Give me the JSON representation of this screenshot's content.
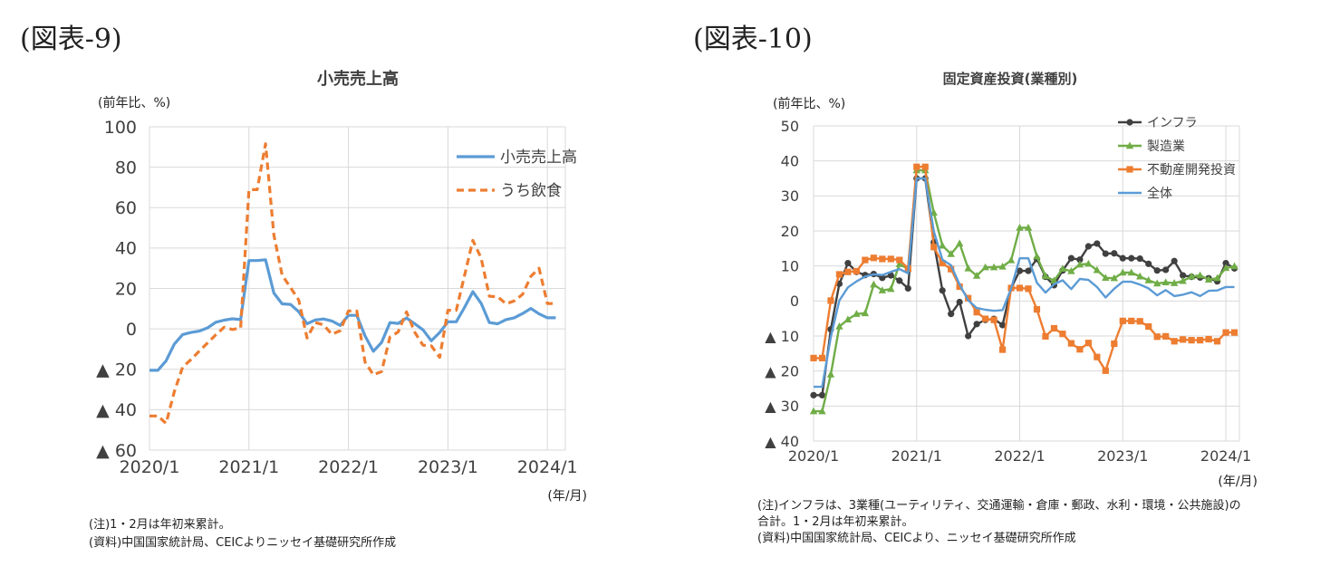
{
  "figures": [
    {
      "label": "(図表-9)",
      "chart_data": {
        "type": "line",
        "title": "小売売上高",
        "ylabel": "(前年比、%)",
        "xunit": "(年/月)",
        "ylim": [
          -60,
          100
        ],
        "yticks": [
          100,
          80,
          60,
          40,
          20,
          0,
          -20,
          -40,
          -60
        ],
        "ytick_labels": [
          "100",
          "80",
          "60",
          "40",
          "20",
          "0",
          "▲ 20",
          "▲ 40",
          "▲ 60"
        ],
        "xtick_labels": [
          "2020/1",
          "2021/1",
          "2022/1",
          "2023/1",
          "2024/1"
        ],
        "xtick_index": [
          0,
          12,
          24,
          36,
          48
        ],
        "grid": true,
        "legend_position": "top-right",
        "series": [
          {
            "name": "小売売上高",
            "color": "#5b9bd5",
            "style": "solid",
            "marker": "none",
            "values": [
              -20.5,
              -20.5,
              -15.8,
              -7.5,
              -2.8,
              -1.8,
              -1.1,
              0.5,
              3.3,
              4.3,
              5.0,
              4.6,
              33.8,
              33.8,
              34.2,
              17.7,
              12.4,
              12.1,
              8.5,
              2.5,
              4.4,
              4.9,
              3.9,
              1.7,
              6.7,
              6.7,
              -3.5,
              -11.1,
              -6.7,
              3.1,
              2.7,
              5.4,
              2.5,
              -0.5,
              -5.9,
              -1.8,
              3.5,
              3.5,
              10.6,
              18.4,
              12.7,
              3.1,
              2.5,
              4.6,
              5.5,
              7.6,
              10.1,
              7.4,
              5.5,
              5.5
            ]
          },
          {
            "name": "うち飲食",
            "color": "#ed7d31",
            "style": "dashed",
            "marker": "none",
            "values": [
              -43.1,
              -43.1,
              -46.8,
              -31.1,
              -18.9,
              -15.2,
              -11.0,
              -7.0,
              -2.9,
              0.8,
              -0.3,
              0.4,
              68.9,
              68.9,
              91.6,
              46.4,
              26.6,
              20.5,
              14.3,
              -4.5,
              3.1,
              2.0,
              -2.7,
              -0.9,
              8.9,
              8.9,
              -16.4,
              -22.7,
              -21.1,
              -4.0,
              -1.5,
              8.4,
              -1.7,
              -8.1,
              -8.4,
              -14.1,
              9.2,
              9.2,
              26.3,
              43.8,
              35.1,
              16.1,
              15.9,
              12.4,
              13.8,
              17.1,
              25.9,
              30.0,
              12.5,
              12.5
            ]
          }
        ]
      },
      "notes": [
        "(注)1・2月は年初来累計。",
        "(資料)中国国家統計局、CEICよりニッセイ基礎研究所作成"
      ]
    },
    {
      "label": "(図表-10)",
      "chart_data": {
        "type": "line",
        "title": "固定資産投資(業種別)",
        "ylabel": "(前年比、%)",
        "xunit": "(年/月)",
        "ylim": [
          -40,
          50
        ],
        "yticks": [
          50,
          40,
          30,
          20,
          10,
          0,
          -10,
          -20,
          -30,
          -40
        ],
        "ytick_labels": [
          "50",
          "40",
          "30",
          "20",
          "10",
          "0",
          "▲ 10",
          "▲ 20",
          "▲ 30",
          "▲ 40"
        ],
        "xtick_labels": [
          "2020/1",
          "2021/1",
          "2022/1",
          "2023/1",
          "2024/1"
        ],
        "xtick_index": [
          0,
          12,
          24,
          36,
          48
        ],
        "grid": true,
        "legend_position": "top-right",
        "series": [
          {
            "name": "インフラ",
            "color": "#404040",
            "style": "solid",
            "marker": "circle",
            "values": [
              -26.9,
              -26.9,
              -8.1,
              4.9,
              10.8,
              8.3,
              7.4,
              7.7,
              6.6,
              7.3,
              5.8,
              3.6,
              35.0,
              35.0,
              16.8,
              3.0,
              -3.7,
              -0.3,
              -10.0,
              -6.6,
              -5.4,
              -5.1,
              -6.9,
              3.7,
              8.6,
              8.6,
              12.0,
              6.9,
              4.5,
              8.7,
              12.2,
              11.8,
              15.6,
              16.4,
              13.5,
              13.6,
              12.2,
              12.2,
              12.1,
              10.6,
              8.7,
              8.9,
              11.4,
              7.3,
              6.9,
              6.7,
              6.5,
              5.6,
              10.8,
              9.3
            ]
          },
          {
            "name": "製造業",
            "color": "#70ad47",
            "style": "solid",
            "marker": "triangle",
            "values": [
              -31.5,
              -31.5,
              -21.0,
              -7.3,
              -5.3,
              -3.7,
              -3.5,
              4.7,
              3.0,
              3.4,
              10.5,
              9.2,
              37.3,
              37.3,
              25.2,
              15.8,
              13.4,
              16.4,
              9.3,
              7.2,
              9.6,
              9.6,
              9.8,
              11.6,
              20.9,
              20.9,
              12.7,
              7.1,
              5.8,
              9.2,
              8.5,
              10.4,
              10.6,
              8.8,
              6.6,
              6.5,
              8.1,
              8.1,
              7.0,
              5.9,
              5.0,
              5.3,
              5.1,
              5.7,
              7.0,
              7.3,
              6.1,
              6.5,
              9.4,
              9.9
            ]
          },
          {
            "name": "不動産開発投資",
            "color": "#ed7d31",
            "style": "solid",
            "marker": "square",
            "values": [
              -16.3,
              -16.3,
              0.1,
              7.6,
              8.3,
              8.5,
              11.7,
              12.3,
              12.0,
              12.0,
              11.7,
              9.3,
              38.3,
              38.3,
              15.4,
              10.8,
              9.1,
              4.1,
              0.8,
              -3.2,
              -5.1,
              -5.4,
              -13.9,
              3.7,
              3.7,
              3.5,
              -2.4,
              -10.1,
              -7.8,
              -9.4,
              -12.1,
              -13.8,
              -12.0,
              -16.0,
              -19.9,
              -12.2,
              -5.7,
              -5.7,
              -5.8,
              -7.3,
              -10.2,
              -10.1,
              -11.5,
              -11.0,
              -11.2,
              -11.2,
              -10.9,
              -11.5,
              -9.0,
              -9.0
            ]
          },
          {
            "name": "全体",
            "color": "#5b9bd5",
            "style": "solid",
            "marker": "none",
            "values": [
              -24.5,
              -24.5,
              -10.3,
              0.1,
              3.9,
              5.6,
              7.0,
              7.6,
              7.4,
              8.3,
              9.1,
              7.9,
              35.0,
              35.0,
              19.9,
              11.8,
              10.2,
              4.7,
              0.2,
              -2.0,
              -2.5,
              -2.8,
              -2.6,
              3.5,
              12.2,
              12.2,
              5.2,
              2.4,
              4.8,
              5.9,
              3.4,
              6.3,
              6.0,
              4.0,
              1.0,
              3.5,
              5.5,
              5.5,
              4.7,
              3.6,
              1.6,
              3.1,
              1.4,
              1.8,
              2.5,
              1.4,
              2.9,
              3.0,
              4.0,
              4.0
            ]
          }
        ]
      },
      "notes": [
        "(注)インフラは、3業種(ユーティリティ、交通運輸・倉庫・郵政、水利・環境・公共施設)の",
        "合計。1・2月は年初来累計。",
        "(資料)中国国家統計局、CEICより、ニッセイ基礎研究所作成"
      ]
    }
  ]
}
